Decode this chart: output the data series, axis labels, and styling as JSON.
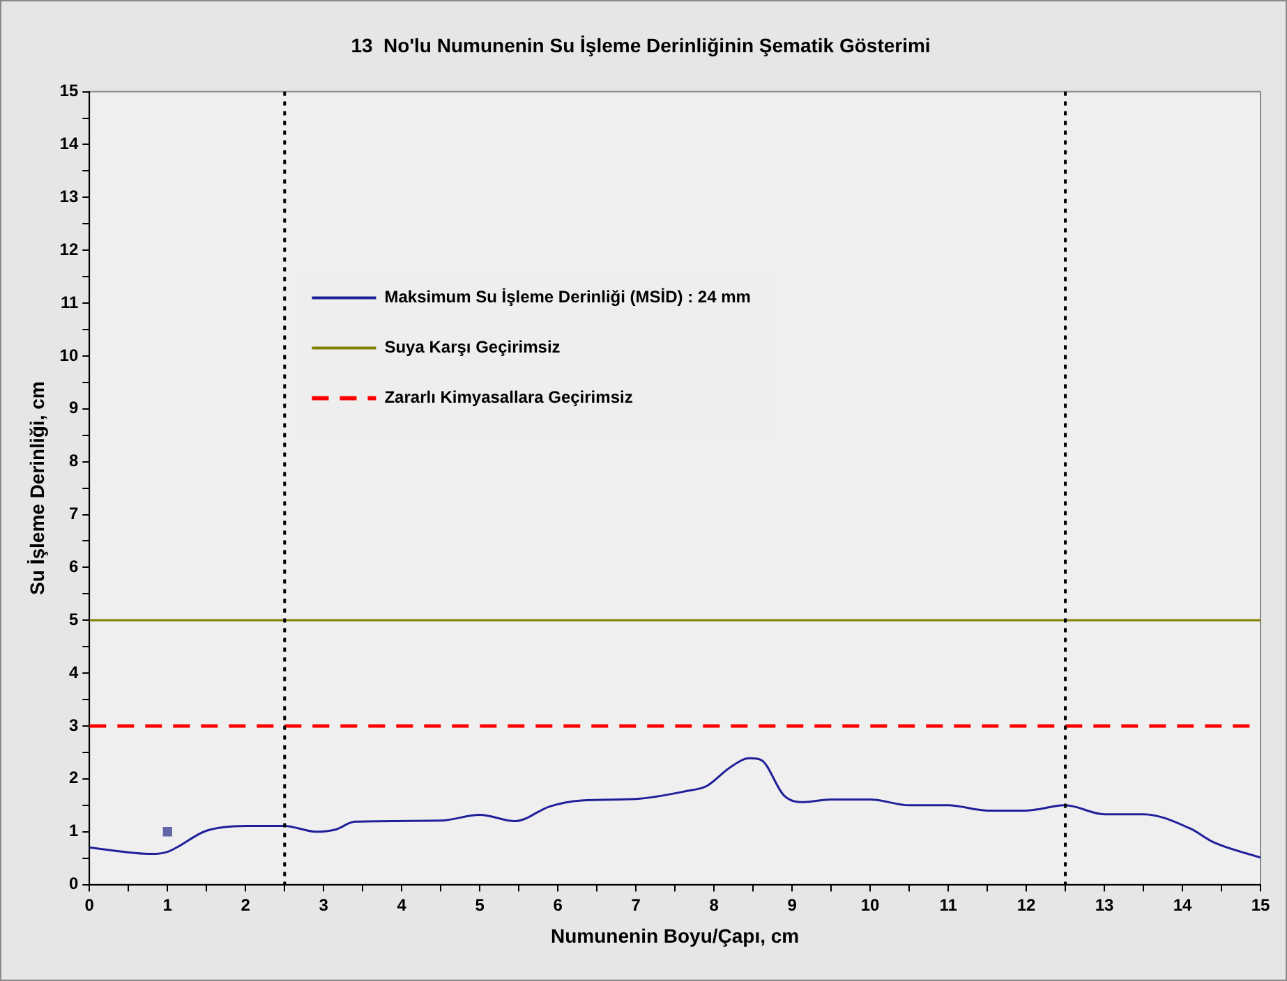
{
  "chart_data": {
    "type": "line",
    "title": "13  No'lu Numunenin Su İşleme Derinliğinin Şematik Gösterimi",
    "xlabel": "Numunenin Boyu/Çapı, cm",
    "ylabel": "Su İşleme Derinliği, cm",
    "xlim": [
      0,
      15
    ],
    "ylim": [
      0,
      15
    ],
    "xticks": [
      0,
      {
        "value": 0.5,
        "label": null
      },
      1,
      {
        "value": 1.5,
        "label": null
      },
      2,
      {
        "value": 2.5,
        "label": null
      },
      3,
      {
        "value": 3.5,
        "label": null
      },
      4,
      {
        "value": 4.5,
        "label": null
      },
      5,
      {
        "value": 5.5,
        "label": null
      },
      6,
      {
        "value": 6.5,
        "label": null
      },
      7,
      {
        "value": 7.5,
        "label": null
      },
      8,
      {
        "value": 8.5,
        "label": null
      },
      9,
      {
        "value": 9.5,
        "label": null
      },
      10,
      {
        "value": 10.5,
        "label": null
      },
      11,
      {
        "value": 11.5,
        "label": null
      },
      12,
      {
        "value": 12.5,
        "label": null
      },
      13,
      {
        "value": 13.5,
        "label": null
      },
      14,
      {
        "value": 14.5,
        "label": null
      },
      15
    ],
    "yticks": [
      0,
      {
        "value": 0.5,
        "label": null
      },
      1,
      {
        "value": 1.5,
        "label": null
      },
      2,
      {
        "value": 2.5,
        "label": null
      },
      3,
      {
        "value": 3.5,
        "label": null
      },
      4,
      {
        "value": 4.5,
        "label": null
      },
      5,
      {
        "value": 5.5,
        "label": null
      },
      6,
      {
        "value": 6.5,
        "label": null
      },
      7,
      {
        "value": 7.5,
        "label": null
      },
      8,
      {
        "value": 8.5,
        "label": null
      },
      9,
      {
        "value": 9.5,
        "label": null
      },
      10,
      {
        "value": 10.5,
        "label": null
      },
      11,
      {
        "value": 11.5,
        "label": null
      },
      12,
      {
        "value": 12.5,
        "label": null
      },
      13,
      {
        "value": 13.5,
        "label": null
      },
      14,
      {
        "value": 14.5,
        "label": null
      },
      15
    ],
    "grid": false,
    "legend": "top left",
    "series": [
      {
        "name": "Maksimum Su İşleme Derinliği (MSİD) : 24 mm",
        "color": "#1f1f9a",
        "marker": "none",
        "line_style": "solid",
        "x": [
          0,
          0.8,
          1,
          1.5,
          2,
          2.5,
          2.9,
          3.15,
          3.4,
          4.5,
          5,
          5.45,
          5.9,
          6.3,
          7,
          7.65,
          7.9,
          8.2,
          8.45,
          8.6,
          8.9,
          9.15,
          9.5,
          10,
          10.5,
          11,
          11.5,
          12,
          12.5,
          13,
          13.5,
          14.1,
          14.4,
          15
        ],
        "values": [
          0.7,
          0.58,
          0.62,
          1.02,
          1.11,
          1.11,
          1,
          1.04,
          1.19,
          1.21,
          1.32,
          1.2,
          1.48,
          1.59,
          1.62,
          1.77,
          1.86,
          2.21,
          2.39,
          2.36,
          1.68,
          1.56,
          1.61,
          1.61,
          1.5,
          1.5,
          1.4,
          1.4,
          1.5,
          1.33,
          1.33,
          1.06,
          0.8,
          0.51
        ]
      },
      {
        "type": "scatter",
        "color": "#6464a8",
        "marker": "square",
        "x": [
          1
        ],
        "values": [
          1
        ]
      },
      {
        "name": "Suya Karşı Geçirimsiz",
        "color": "#808000",
        "marker": "none",
        "line_style": "solid",
        "x": [
          0,
          15
        ],
        "values": [
          5,
          5
        ]
      },
      {
        "name": "Zararlı Kimyasallara Geçirimsiz",
        "color": "#ff0000",
        "marker": "none",
        "line_style": "dashed",
        "x": [
          0,
          15
        ],
        "values": [
          3,
          3
        ]
      }
    ],
    "ref_lines": [
      {
        "axis": "x",
        "value": 2.5,
        "color": "#000000",
        "line_style": "dotted"
      },
      {
        "axis": "x",
        "value": 12.5,
        "color": "#000000",
        "line_style": "dotted"
      }
    ]
  }
}
